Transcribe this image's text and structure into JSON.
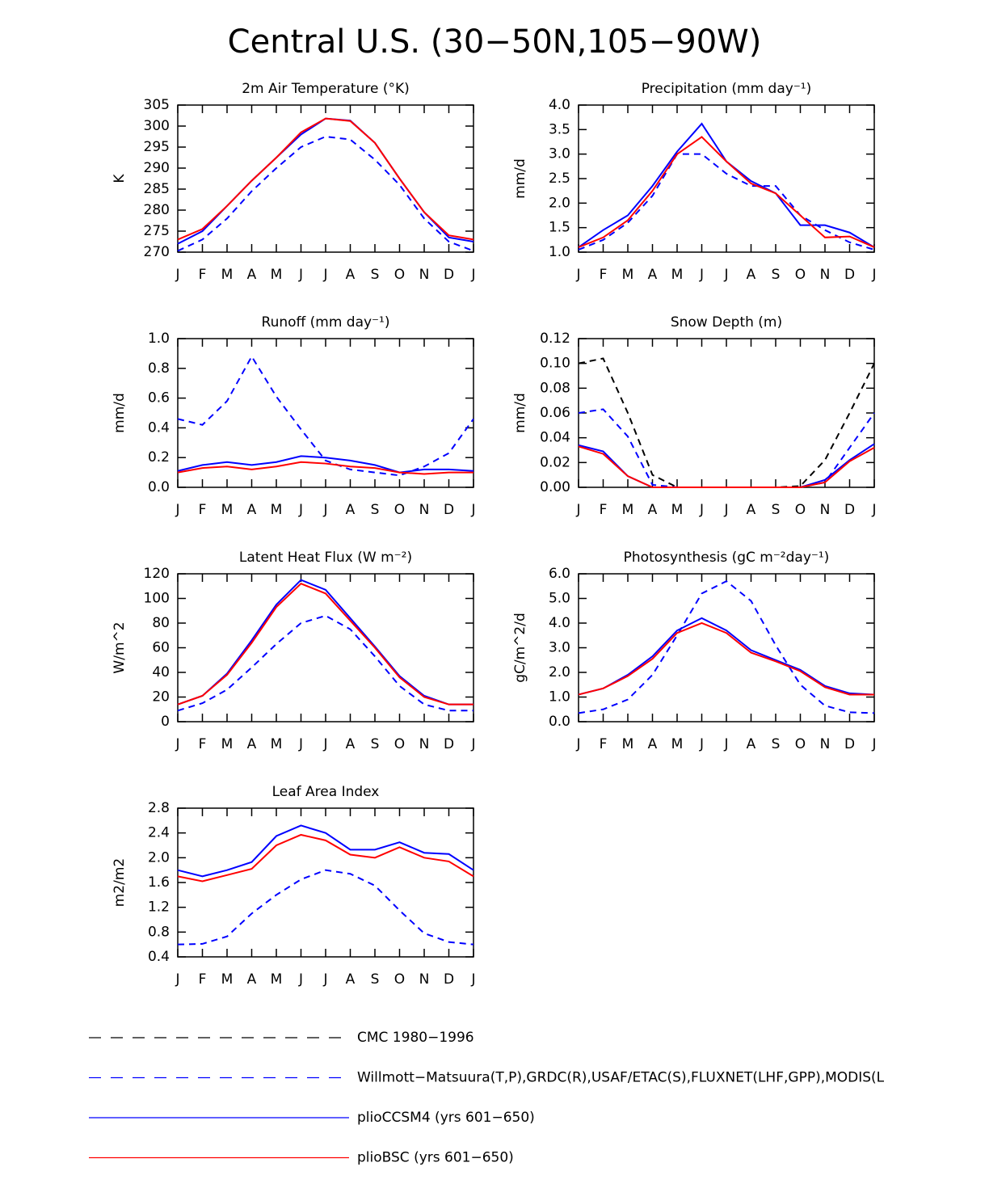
{
  "title": "Central U.S. (30−50N,105−90W)",
  "chart_data": [
    {
      "type": "line",
      "title": "2m Air Temperature (°K)",
      "y_label": "K",
      "categories": [
        "J",
        "F",
        "M",
        "A",
        "M",
        "J",
        "J",
        "A",
        "S",
        "O",
        "N",
        "D",
        "J"
      ],
      "ylim": [
        270,
        305
      ],
      "yticks": [
        270,
        275,
        280,
        285,
        290,
        295,
        300,
        305
      ],
      "series": [
        {
          "color": "#0000ff",
          "dash": true,
          "values": [
            270.3,
            273,
            278,
            284.5,
            290,
            295,
            297.5,
            296.8,
            292,
            286,
            278,
            272.5,
            270.3
          ]
        },
        {
          "color": "#0000ff",
          "dash": false,
          "values": [
            272,
            275,
            281,
            287,
            292.5,
            298,
            301.8,
            301.3,
            296,
            287.5,
            279.5,
            273.5,
            272.5
          ]
        },
        {
          "color": "#ff0000",
          "dash": false,
          "values": [
            273,
            275.5,
            281,
            287,
            292.5,
            298.5,
            301.8,
            301.2,
            296,
            287.5,
            279.5,
            274,
            273
          ]
        }
      ]
    },
    {
      "type": "line",
      "title": "Precipitation (mm day⁻¹)",
      "y_label": "mm/d",
      "categories": [
        "J",
        "F",
        "M",
        "A",
        "M",
        "J",
        "J",
        "A",
        "S",
        "O",
        "N",
        "D",
        "J"
      ],
      "ylim": [
        1,
        4
      ],
      "yticks": [
        {
          "value": 1,
          "label": "1.0"
        },
        1.5,
        {
          "value": 2,
          "label": "2.0"
        },
        2.5,
        {
          "value": 3,
          "label": "3.0"
        },
        3.5,
        {
          "value": 4,
          "label": "4.0"
        }
      ],
      "series": [
        {
          "color": "#0000ff",
          "dash": true,
          "values": [
            1.05,
            1.25,
            1.6,
            2.15,
            3.0,
            3.0,
            2.6,
            2.35,
            2.35,
            1.75,
            1.45,
            1.2,
            1.05
          ]
        },
        {
          "color": "#0000ff",
          "dash": false,
          "values": [
            1.1,
            1.45,
            1.75,
            2.35,
            3.05,
            3.62,
            2.85,
            2.45,
            2.2,
            1.55,
            1.55,
            1.4,
            1.1
          ]
        },
        {
          "color": "#ff0000",
          "dash": false,
          "values": [
            1.1,
            1.3,
            1.65,
            2.25,
            3.0,
            3.35,
            2.85,
            2.4,
            2.2,
            1.75,
            1.3,
            1.32,
            1.1
          ]
        }
      ]
    },
    {
      "type": "line",
      "title": "Runoff (mm day⁻¹)",
      "y_label": "mm/d",
      "categories": [
        "J",
        "F",
        "M",
        "A",
        "M",
        "J",
        "J",
        "A",
        "S",
        "O",
        "N",
        "D",
        "J"
      ],
      "ylim": [
        0,
        1
      ],
      "yticks": [
        {
          "value": 0,
          "label": "0.0"
        },
        0.2,
        0.4,
        0.6,
        0.8,
        {
          "value": 1,
          "label": "1.0"
        }
      ],
      "series": [
        {
          "color": "#0000ff",
          "dash": true,
          "values": [
            0.46,
            0.42,
            0.58,
            0.88,
            0.61,
            0.39,
            0.18,
            0.12,
            0.1,
            0.08,
            0.14,
            0.23,
            0.46
          ]
        },
        {
          "color": "#0000ff",
          "dash": false,
          "values": [
            0.11,
            0.15,
            0.17,
            0.15,
            0.17,
            0.21,
            0.2,
            0.18,
            0.15,
            0.1,
            0.12,
            0.12,
            0.11
          ]
        },
        {
          "color": "#ff0000",
          "dash": false,
          "values": [
            0.1,
            0.13,
            0.14,
            0.12,
            0.14,
            0.17,
            0.16,
            0.14,
            0.13,
            0.1,
            0.09,
            0.1,
            0.1
          ]
        }
      ]
    },
    {
      "type": "line",
      "title": "Snow Depth (m)",
      "y_label": "mm/d",
      "categories": [
        "J",
        "F",
        "M",
        "A",
        "M",
        "J",
        "J",
        "A",
        "S",
        "O",
        "N",
        "D",
        "J"
      ],
      "ylim": [
        0,
        0.12
      ],
      "yticks": [
        {
          "value": 0,
          "label": "0.00"
        },
        {
          "value": 0.02,
          "label": "0.02"
        },
        {
          "value": 0.04,
          "label": "0.04"
        },
        {
          "value": 0.06,
          "label": "0.06"
        },
        {
          "value": 0.08,
          "label": "0.08"
        },
        {
          "value": 0.1,
          "label": "0.10"
        },
        {
          "value": 0.12,
          "label": "0.12"
        }
      ],
      "series": [
        {
          "name": "CMC 1980−1996",
          "color": "#000000",
          "dash": true,
          "values": [
            0.1,
            0.104,
            0.06,
            0.01,
            0,
            0,
            0,
            0,
            0,
            0.001,
            0.022,
            0.06,
            0.1
          ]
        },
        {
          "name": "Willmott−Matsuura(T,P),GRDC(R),USAF/ETAC(S),FLUXNET(LHF,GPP),MODIS(L",
          "color": "#0000ff",
          "dash": true,
          "values": [
            0.06,
            0.063,
            0.041,
            0.002,
            0,
            0,
            0,
            0,
            0,
            0,
            0.004,
            0.032,
            0.06
          ]
        },
        {
          "name": "plioCCSM4 (yrs 601−650)",
          "color": "#0000ff",
          "dash": false,
          "values": [
            0.034,
            0.029,
            0.009,
            0,
            0,
            0,
            0,
            0,
            0,
            0,
            0.006,
            0.022,
            0.035
          ]
        },
        {
          "name": "plioBSC (yrs 601−650)",
          "color": "#ff0000",
          "dash": false,
          "values": [
            0.033,
            0.027,
            0.009,
            0,
            0,
            0,
            0,
            0,
            0,
            0,
            0.004,
            0.021,
            0.032
          ]
        }
      ]
    },
    {
      "type": "line",
      "title": "Latent Heat Flux (W m⁻²)",
      "y_label": "W/m^2",
      "categories": [
        "J",
        "F",
        "M",
        "A",
        "M",
        "J",
        "J",
        "A",
        "S",
        "O",
        "N",
        "D",
        "J"
      ],
      "ylim": [
        0,
        120
      ],
      "yticks": [
        0,
        20,
        40,
        60,
        80,
        100,
        120
      ],
      "series": [
        {
          "color": "#0000ff",
          "dash": true,
          "values": [
            9,
            15,
            26,
            44,
            63,
            80,
            86,
            75,
            53,
            29,
            14,
            9,
            9
          ]
        },
        {
          "color": "#0000ff",
          "dash": false,
          "values": [
            14,
            21,
            39,
            66,
            95,
            115,
            107,
            84,
            61,
            37,
            21,
            14,
            14
          ]
        },
        {
          "color": "#ff0000",
          "dash": false,
          "values": [
            14,
            21,
            38,
            64,
            93,
            112,
            104,
            82,
            60,
            36,
            20,
            14,
            14
          ]
        }
      ]
    },
    {
      "type": "line",
      "title": "Photosynthesis (gC m⁻²day⁻¹)",
      "y_label": "gC/m^2/d",
      "categories": [
        "J",
        "F",
        "M",
        "A",
        "M",
        "J",
        "J",
        "A",
        "S",
        "O",
        "N",
        "D",
        "J"
      ],
      "ylim": [
        0,
        6
      ],
      "yticks": [
        {
          "value": 0,
          "label": "0.0"
        },
        {
          "value": 1,
          "label": "1.0"
        },
        {
          "value": 2,
          "label": "2.0"
        },
        {
          "value": 3,
          "label": "3.0"
        },
        {
          "value": 4,
          "label": "4.0"
        },
        {
          "value": 5,
          "label": "5.0"
        },
        {
          "value": 6,
          "label": "6.0"
        }
      ],
      "series": [
        {
          "color": "#0000ff",
          "dash": true,
          "values": [
            0.35,
            0.5,
            0.9,
            1.9,
            3.5,
            5.2,
            5.7,
            4.9,
            3.1,
            1.5,
            0.65,
            0.38,
            0.35
          ]
        },
        {
          "color": "#0000ff",
          "dash": false,
          "values": [
            1.1,
            1.35,
            1.9,
            2.65,
            3.7,
            4.2,
            3.7,
            2.9,
            2.5,
            2.1,
            1.45,
            1.15,
            1.1
          ]
        },
        {
          "color": "#ff0000",
          "dash": false,
          "values": [
            1.1,
            1.35,
            1.85,
            2.55,
            3.6,
            4.0,
            3.6,
            2.8,
            2.45,
            2.05,
            1.4,
            1.1,
            1.1
          ]
        }
      ]
    },
    {
      "type": "line",
      "title": "Leaf Area Index",
      "y_label": "m2/m2",
      "categories": [
        "J",
        "F",
        "M",
        "A",
        "M",
        "J",
        "J",
        "A",
        "S",
        "O",
        "N",
        "D",
        "J"
      ],
      "ylim": [
        0.4,
        2.8
      ],
      "yticks": [
        0.4,
        0.8,
        1.2,
        1.6,
        {
          "value": 2,
          "label": "2.0"
        },
        2.4,
        2.8
      ],
      "series": [
        {
          "color": "#0000ff",
          "dash": true,
          "values": [
            0.6,
            0.61,
            0.73,
            1.1,
            1.4,
            1.65,
            1.8,
            1.74,
            1.55,
            1.15,
            0.78,
            0.64,
            0.6
          ]
        },
        {
          "color": "#0000ff",
          "dash": false,
          "values": [
            1.8,
            1.7,
            1.8,
            1.93,
            2.35,
            2.52,
            2.4,
            2.13,
            2.13,
            2.25,
            2.08,
            2.06,
            1.8
          ]
        },
        {
          "color": "#ff0000",
          "dash": false,
          "values": [
            1.7,
            1.62,
            1.72,
            1.82,
            2.2,
            2.37,
            2.28,
            2.05,
            2.0,
            2.17,
            2.0,
            1.94,
            1.7
          ]
        }
      ]
    }
  ]
}
